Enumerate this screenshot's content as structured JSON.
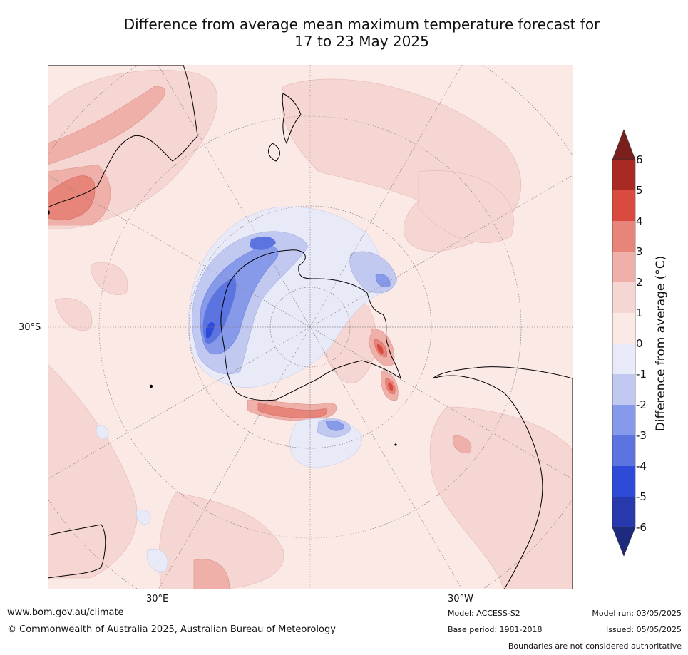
{
  "title": {
    "line1": "Difference from average mean maximum temperature forecast for",
    "line2": "17 to 23 May 2025"
  },
  "map": {
    "projection": "south-polar stereographic",
    "graticule_labels": {
      "lat": "30°S",
      "lon_left": "30°E",
      "lon_right": "30°W"
    }
  },
  "colorbar": {
    "title": "Difference from average (°C)",
    "ticks": [
      "6",
      "5",
      "4",
      "3",
      "2",
      "1",
      "0",
      "-1",
      "-2",
      "-3",
      "-4",
      "-5",
      "-6"
    ],
    "colors": {
      "above_6": "#7a1f1b",
      "5_to_6": "#a92a23",
      "4_to_5": "#d94b3f",
      "3_to_4": "#e8857b",
      "2_to_3": "#efb0aa",
      "1_to_2": "#f5d6d2",
      "0_to_1": "#fbe9e6",
      "m1_to_0": "#e8eaf8",
      "m2_to_m1": "#c2c9f1",
      "m3_to_m2": "#8799e9",
      "m4_to_m3": "#5b74e0",
      "m5_to_m4": "#2e4ad8",
      "m6_to_m5": "#2839ad",
      "below_m6": "#1d2a7d"
    }
  },
  "footer": {
    "url": "www.bom.gov.au/climate",
    "copyright": "© Commonwealth of Australia 2025, Australian Bureau of Meteorology",
    "model": "Model: ACCESS-S2",
    "base_period": "Base period: 1981-2018",
    "model_run": "Model run: 03/05/2025",
    "issued": "Issued: 05/05/2025",
    "disclaimer": "Boundaries are not considered authoritative"
  }
}
